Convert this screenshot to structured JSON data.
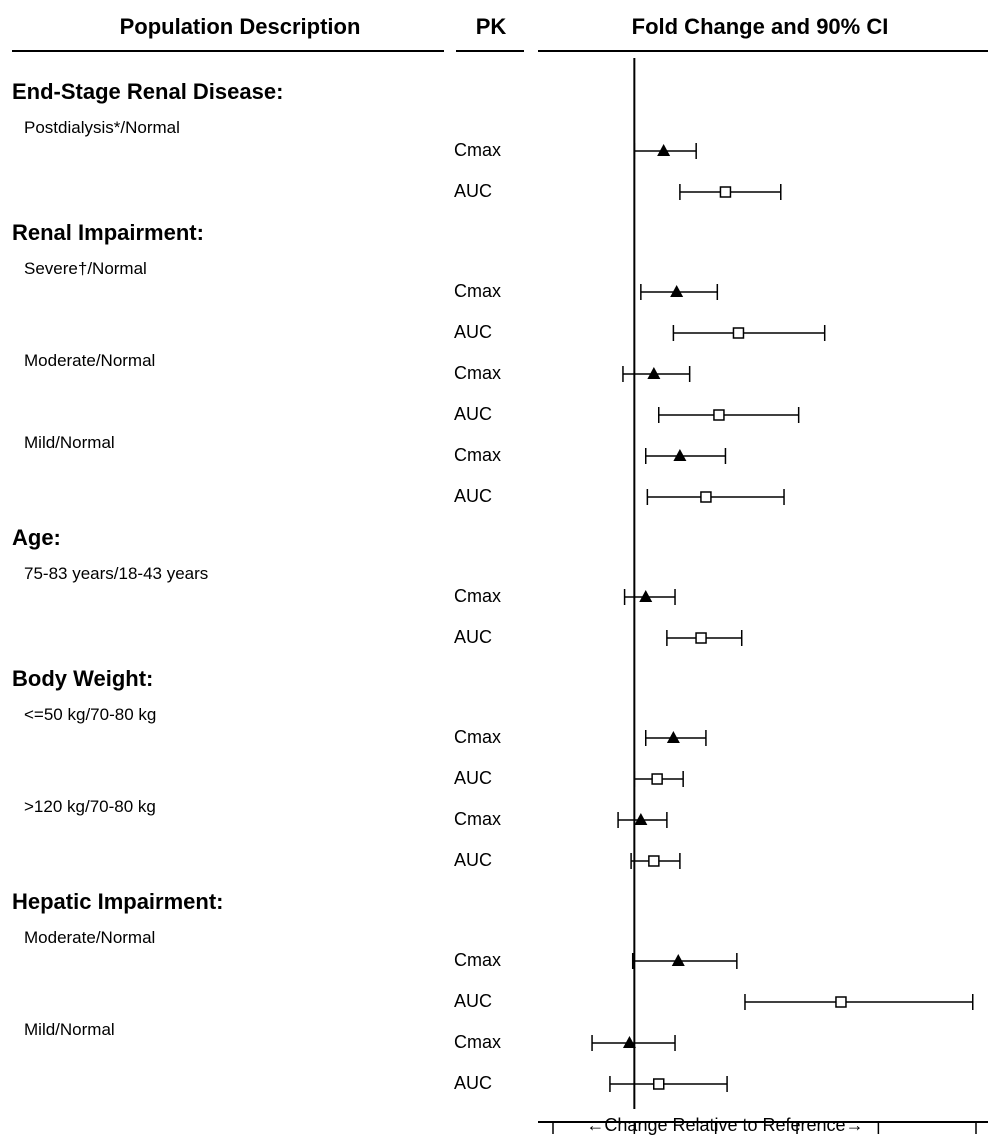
{
  "header": {
    "population": "Population Description",
    "pk": "PK",
    "fold": "Fold Change and 90% CI"
  },
  "x_axis_label": "←Change Relative to Reference→",
  "chart_data": {
    "type": "forest",
    "title": "",
    "xlabel": "←Change Relative to Reference→",
    "xlim": [
      0.5,
      3.1
    ],
    "xticks": [
      "0.5",
      "1",
      "1.5",
      "2",
      "2.5",
      "3.1"
    ],
    "reference_line": 1,
    "markers": {
      "Cmax": "filled-triangle",
      "AUC": "open-square"
    },
    "sections": [
      {
        "name": "End-Stage Renal Disease:",
        "groups": [
          {
            "label": "Postdialysis*/Normal",
            "rows": [
              {
                "pk": "Cmax",
                "est": 1.18,
                "low": 1.0,
                "high": 1.38
              },
              {
                "pk": "AUC",
                "est": 1.56,
                "low": 1.28,
                "high": 1.9
              }
            ]
          }
        ]
      },
      {
        "name": "Renal Impairment:",
        "groups": [
          {
            "label": "Severe†/Normal",
            "rows": [
              {
                "pk": "Cmax",
                "est": 1.26,
                "low": 1.04,
                "high": 1.51
              },
              {
                "pk": "AUC",
                "est": 1.64,
                "low": 1.24,
                "high": 2.17
              }
            ]
          },
          {
            "label": "Moderate/Normal",
            "rows": [
              {
                "pk": "Cmax",
                "est": 1.12,
                "low": 0.93,
                "high": 1.34
              },
              {
                "pk": "AUC",
                "est": 1.52,
                "low": 1.15,
                "high": 2.01
              }
            ]
          },
          {
            "label": "Mild/Normal",
            "rows": [
              {
                "pk": "Cmax",
                "est": 1.28,
                "low": 1.07,
                "high": 1.56
              },
              {
                "pk": "AUC",
                "est": 1.44,
                "low": 1.08,
                "high": 1.92
              }
            ]
          }
        ]
      },
      {
        "name": "Age:",
        "groups": [
          {
            "label": "75-83 years/18-43 years",
            "rows": [
              {
                "pk": "Cmax",
                "est": 1.07,
                "low": 0.94,
                "high": 1.25
              },
              {
                "pk": "AUC",
                "est": 1.41,
                "low": 1.2,
                "high": 1.66
              }
            ]
          }
        ]
      },
      {
        "name": "Body Weight:",
        "groups": [
          {
            "label": "<=50 kg/70-80 kg",
            "rows": [
              {
                "pk": "Cmax",
                "est": 1.24,
                "low": 1.07,
                "high": 1.44
              },
              {
                "pk": "AUC",
                "est": 1.14,
                "low": 1.0,
                "high": 1.3
              }
            ]
          },
          {
            "label": ">120 kg/70-80 kg",
            "rows": [
              {
                "pk": "Cmax",
                "est": 1.04,
                "low": 0.9,
                "high": 1.2
              },
              {
                "pk": "AUC",
                "est": 1.12,
                "low": 0.98,
                "high": 1.28
              }
            ]
          }
        ]
      },
      {
        "name": "Hepatic Impairment:",
        "groups": [
          {
            "label": "Moderate/Normal",
            "rows": [
              {
                "pk": "Cmax",
                "est": 1.27,
                "low": 0.99,
                "high": 1.63
              },
              {
                "pk": "AUC",
                "est": 2.27,
                "low": 1.68,
                "high": 3.08
              }
            ]
          },
          {
            "label": "Mild/Normal",
            "rows": [
              {
                "pk": "Cmax",
                "est": 0.97,
                "low": 0.74,
                "high": 1.25
              },
              {
                "pk": "AUC",
                "est": 1.15,
                "low": 0.85,
                "high": 1.57
              }
            ]
          }
        ]
      }
    ]
  }
}
